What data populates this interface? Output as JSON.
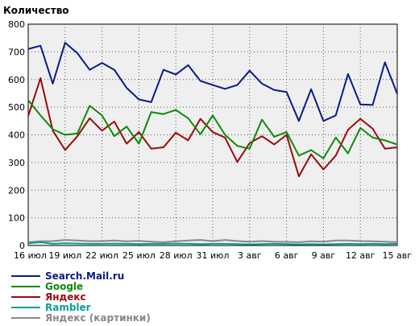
{
  "chart_data": {
    "type": "line",
    "title": "",
    "xlabel": "",
    "ylabel": "Количество",
    "ylim": [
      0,
      800
    ],
    "yticks": [
      0,
      100,
      200,
      300,
      400,
      500,
      600,
      700,
      800
    ],
    "x_tick_labels": [
      "16 июл",
      "19 июл",
      "22 июл",
      "25 июл",
      "28 июл",
      "31 июл",
      "3 авг",
      "6 авг",
      "9 авг",
      "12 авг",
      "15 авг"
    ],
    "x_tick_every": 3,
    "grid": true,
    "legend_position": "bottom-left",
    "series": [
      {
        "name": "Search.Mail.ru",
        "color": "#0a1a8c",
        "values": [
          710,
          722,
          585,
          733,
          695,
          635,
          660,
          635,
          570,
          528,
          518,
          635,
          618,
          652,
          595,
          580,
          566,
          580,
          632,
          585,
          562,
          555,
          450,
          565,
          450,
          470,
          620,
          510,
          508,
          662,
          548
        ]
      },
      {
        "name": "Google",
        "color": "#0a8c0a",
        "values": [
          525,
          470,
          420,
          400,
          405,
          505,
          470,
          395,
          430,
          368,
          482,
          475,
          490,
          460,
          402,
          470,
          400,
          360,
          350,
          455,
          393,
          410,
          325,
          345,
          315,
          390,
          333,
          425,
          390,
          380,
          365
        ]
      },
      {
        "name": "Яндекс",
        "color": "#9c0a0a",
        "values": [
          468,
          605,
          415,
          345,
          395,
          460,
          415,
          448,
          368,
          410,
          350,
          355,
          408,
          380,
          458,
          410,
          390,
          302,
          370,
          395,
          365,
          400,
          250,
          330,
          275,
          325,
          418,
          458,
          422,
          350,
          355
        ]
      },
      {
        "name": "Rambler",
        "color": "#0a9c9c",
        "values": [
          8,
          12,
          6,
          8,
          7,
          6,
          6,
          7,
          6,
          5,
          6,
          6,
          7,
          6,
          5,
          6,
          6,
          5,
          4,
          5,
          6,
          5,
          4,
          5,
          4,
          5,
          6,
          5,
          6,
          5,
          6
        ]
      },
      {
        "name": "Яндекс (картинки)",
        "color": "#888888",
        "values": [
          12,
          15,
          16,
          20,
          18,
          16,
          16,
          18,
          15,
          17,
          14,
          12,
          15,
          18,
          20,
          16,
          20,
          16,
          14,
          16,
          14,
          13,
          12,
          15,
          14,
          18,
          18,
          16,
          15,
          14,
          12
        ]
      }
    ]
  }
}
